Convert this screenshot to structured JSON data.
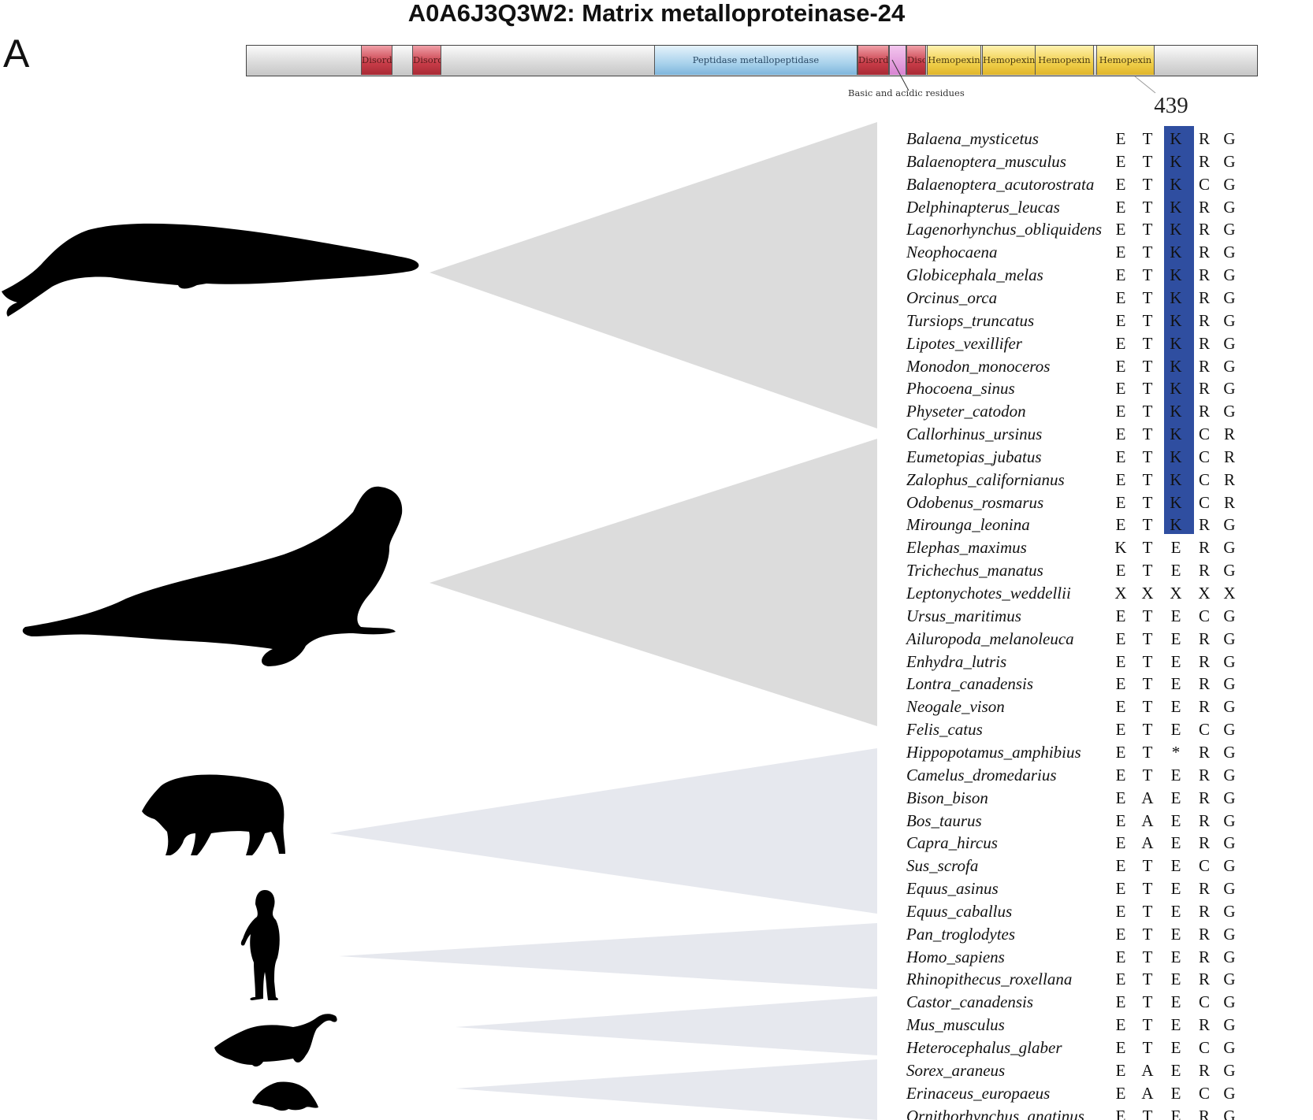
{
  "figure": {
    "title": "A0A6J3Q3W2: Matrix metalloproteinase-24",
    "panel_label": "A"
  },
  "domain_bar": {
    "segments": [
      {
        "label": "Disordered",
        "kind": "disordered"
      },
      {
        "label": "Disordered",
        "kind": "disordered"
      },
      {
        "label": "Peptidase metallopeptidase",
        "kind": "peptidase"
      },
      {
        "label": "Disordered",
        "kind": "disordered"
      },
      {
        "label": "",
        "kind": "basic"
      },
      {
        "label": "Disordered",
        "kind": "disordered"
      },
      {
        "label": "Hemopexin",
        "kind": "hemopexin"
      },
      {
        "label": "Hemopexin",
        "kind": "hemopexin"
      },
      {
        "label": "Hemopexin",
        "kind": "hemopexin"
      },
      {
        "label": "Hemopexin",
        "kind": "hemopexin"
      }
    ],
    "callout_label": "Basic and acidic residues"
  },
  "alignment": {
    "position_label": "439",
    "highlight_color": "#2f4ea0",
    "rows": [
      {
        "species": "Balaena_mysticetus",
        "residues": [
          "E",
          "T",
          "K",
          "R",
          "G"
        ]
      },
      {
        "species": "Balaenoptera_musculus",
        "residues": [
          "E",
          "T",
          "K",
          "R",
          "G"
        ]
      },
      {
        "species": "Balaenoptera_acutorostrata",
        "residues": [
          "E",
          "T",
          "K",
          "C",
          "G"
        ]
      },
      {
        "species": "Delphinapterus_leucas",
        "residues": [
          "E",
          "T",
          "K",
          "R",
          "G"
        ]
      },
      {
        "species": "Lagenorhynchus_obliquidens",
        "residues": [
          "E",
          "T",
          "K",
          "R",
          "G"
        ]
      },
      {
        "species": "Neophocaena",
        "residues": [
          "E",
          "T",
          "K",
          "R",
          "G"
        ]
      },
      {
        "species": "Globicephala_melas",
        "residues": [
          "E",
          "T",
          "K",
          "R",
          "G"
        ]
      },
      {
        "species": "Orcinus_orca",
        "residues": [
          "E",
          "T",
          "K",
          "R",
          "G"
        ]
      },
      {
        "species": "Tursiops_truncatus",
        "residues": [
          "E",
          "T",
          "K",
          "R",
          "G"
        ]
      },
      {
        "species": "Lipotes_vexillifer",
        "residues": [
          "E",
          "T",
          "K",
          "R",
          "G"
        ]
      },
      {
        "species": "Monodon_monoceros",
        "residues": [
          "E",
          "T",
          "K",
          "R",
          "G"
        ]
      },
      {
        "species": "Phocoena_sinus",
        "residues": [
          "E",
          "T",
          "K",
          "R",
          "G"
        ]
      },
      {
        "species": "Physeter_catodon",
        "residues": [
          "E",
          "T",
          "K",
          "R",
          "G"
        ]
      },
      {
        "species": "Callorhinus_ursinus",
        "residues": [
          "E",
          "T",
          "K",
          "C",
          "R"
        ]
      },
      {
        "species": "Eumetopias_jubatus",
        "residues": [
          "E",
          "T",
          "K",
          "C",
          "R"
        ]
      },
      {
        "species": "Zalophus_californianus",
        "residues": [
          "E",
          "T",
          "K",
          "C",
          "R"
        ]
      },
      {
        "species": "Odobenus_rosmarus",
        "residues": [
          "E",
          "T",
          "K",
          "C",
          "R"
        ]
      },
      {
        "species": "Mirounga_leonina",
        "residues": [
          "E",
          "T",
          "K",
          "R",
          "G"
        ]
      },
      {
        "species": "Elephas_maximus",
        "residues": [
          "K",
          "T",
          "E",
          "R",
          "G"
        ]
      },
      {
        "species": "Trichechus_manatus",
        "residues": [
          "E",
          "T",
          "E",
          "R",
          "G"
        ]
      },
      {
        "species": "Leptonychotes_weddellii",
        "residues": [
          "X",
          "X",
          "X",
          "X",
          "X"
        ]
      },
      {
        "species": "Ursus_maritimus",
        "residues": [
          "E",
          "T",
          "E",
          "C",
          "G"
        ]
      },
      {
        "species": "Ailuropoda_melanoleuca",
        "residues": [
          "E",
          "T",
          "E",
          "R",
          "G"
        ]
      },
      {
        "species": "Enhydra_lutris",
        "residues": [
          "E",
          "T",
          "E",
          "R",
          "G"
        ]
      },
      {
        "species": "Lontra_canadensis",
        "residues": [
          "E",
          "T",
          "E",
          "R",
          "G"
        ]
      },
      {
        "species": "Neogale_vison",
        "residues": [
          "E",
          "T",
          "E",
          "R",
          "G"
        ]
      },
      {
        "species": "Felis_catus",
        "residues": [
          "E",
          "T",
          "E",
          "C",
          "G"
        ]
      },
      {
        "species": "Hippopotamus_amphibius",
        "residues": [
          "E",
          "T",
          "*",
          "R",
          "G"
        ]
      },
      {
        "species": "Camelus_dromedarius",
        "residues": [
          "E",
          "T",
          "E",
          "R",
          "G"
        ]
      },
      {
        "species": "Bison_bison",
        "residues": [
          "E",
          "A",
          "E",
          "R",
          "G"
        ]
      },
      {
        "species": "Bos_taurus",
        "residues": [
          "E",
          "A",
          "E",
          "R",
          "G"
        ]
      },
      {
        "species": "Capra_hircus",
        "residues": [
          "E",
          "A",
          "E",
          "R",
          "G"
        ]
      },
      {
        "species": "Sus_scrofa",
        "residues": [
          "E",
          "T",
          "E",
          "C",
          "G"
        ]
      },
      {
        "species": "Equus_asinus",
        "residues": [
          "E",
          "T",
          "E",
          "R",
          "G"
        ]
      },
      {
        "species": "Equus_caballus",
        "residues": [
          "E",
          "T",
          "E",
          "R",
          "G"
        ]
      },
      {
        "species": "Pan_troglodytes",
        "residues": [
          "E",
          "T",
          "E",
          "R",
          "G"
        ]
      },
      {
        "species": "Homo_sapiens",
        "residues": [
          "E",
          "T",
          "E",
          "R",
          "G"
        ]
      },
      {
        "species": "Rhinopithecus_roxellana",
        "residues": [
          "E",
          "T",
          "E",
          "R",
          "G"
        ]
      },
      {
        "species": "Castor_canadensis",
        "residues": [
          "E",
          "T",
          "E",
          "C",
          "G"
        ]
      },
      {
        "species": "Mus_musculus",
        "residues": [
          "E",
          "T",
          "E",
          "R",
          "G"
        ]
      },
      {
        "species": "Heterocephalus_glaber",
        "residues": [
          "E",
          "T",
          "E",
          "C",
          "G"
        ]
      },
      {
        "species": "Sorex_araneus",
        "residues": [
          "E",
          "A",
          "E",
          "R",
          "G"
        ]
      },
      {
        "species": "Erinaceus_europaeus",
        "residues": [
          "E",
          "A",
          "E",
          "C",
          "G"
        ]
      },
      {
        "species": "Ornithorhynchus_anatinus",
        "residues": [
          "E",
          "T",
          "E",
          "R",
          "G"
        ]
      }
    ]
  },
  "clades": [
    {
      "silhouette": "whale-silhouette",
      "color": "#dcdcdc"
    },
    {
      "silhouette": "seal-silhouette",
      "color": "#dcdcdc"
    },
    {
      "silhouette": "boar-silhouette",
      "color": "#e6e8ee"
    },
    {
      "silhouette": "human-silhouette",
      "color": "#e6e8ee"
    },
    {
      "silhouette": "rodent-silhouette",
      "color": "#e6e8ee"
    },
    {
      "silhouette": "shrew-silhouette",
      "color": "#e6e8ee"
    }
  ]
}
